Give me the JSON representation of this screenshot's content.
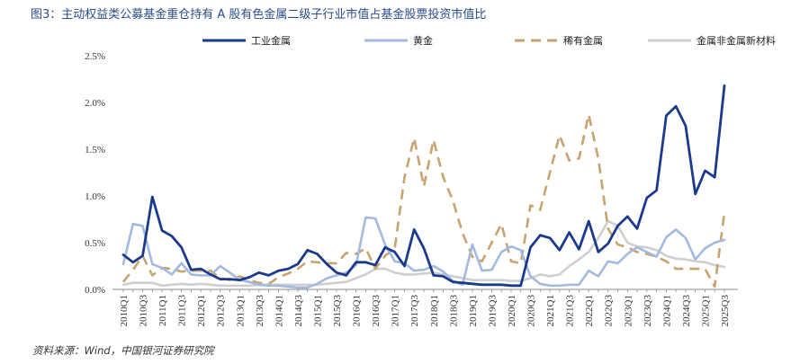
{
  "title": "图3：主动权益类公募基金重仓持有 A 股有色金属二级子行业市值占基金股票投资市值比",
  "source": "资料来源：Wind，中国银河证券研究院",
  "chart_data": {
    "type": "line",
    "title": "图3：主动权益类公募基金重仓持有 A 股有色金属二级子行业市值占基金股票投资市值比",
    "xlabel": "",
    "ylabel": "",
    "ylim": [
      0,
      2.5
    ],
    "yticks": [
      "0.0%",
      "0.5%",
      "1.0%",
      "1.5%",
      "2.0%",
      "2.5%"
    ],
    "grid": false,
    "legend_position": "top",
    "x": [
      "2010Q1",
      "2010Q2",
      "2010Q3",
      "2010Q4",
      "2011Q1",
      "2011Q2",
      "2011Q3",
      "2011Q4",
      "2012Q1",
      "2012Q2",
      "2012Q3",
      "2012Q4",
      "2013Q1",
      "2013Q2",
      "2013Q3",
      "2013Q4",
      "2014Q1",
      "2014Q2",
      "2014Q3",
      "2014Q4",
      "2015Q1",
      "2015Q2",
      "2015Q3",
      "2015Q4",
      "2016Q1",
      "2016Q2",
      "2016Q3",
      "2016Q4",
      "2017Q1",
      "2017Q2",
      "2017Q3",
      "2017Q4",
      "2018Q1",
      "2018Q2",
      "2018Q3",
      "2018Q4",
      "2019Q1",
      "2019Q2",
      "2019Q3",
      "2019Q4",
      "2020Q1",
      "2020Q2",
      "2020Q3",
      "2020Q4",
      "2021Q1",
      "2021Q2",
      "2021Q3",
      "2021Q4",
      "2022Q1",
      "2022Q2",
      "2022Q3",
      "2022Q4",
      "2023Q1",
      "2023Q2",
      "2023Q3",
      "2023Q4",
      "2024Q1",
      "2024Q2",
      "2024Q3",
      "2024Q4",
      "2025Q1",
      "2025Q2",
      "2025Q3"
    ],
    "xticks_shown": [
      "2010Q1",
      "2010Q3",
      "2011Q1",
      "2011Q3",
      "2012Q1",
      "2012Q3",
      "2013Q1",
      "2013Q3",
      "2014Q1",
      "2014Q3",
      "2015Q1",
      "2015Q3",
      "2016Q1",
      "2016Q3",
      "2017Q1",
      "2017Q3",
      "2018Q1",
      "2018Q3",
      "2019Q1",
      "2019Q3",
      "2020Q1",
      "2020Q3",
      "2021Q1",
      "2021Q3",
      "2022Q1",
      "2022Q3",
      "2023Q1",
      "2023Q3",
      "2024Q1",
      "2024Q3",
      "2025Q1",
      "2025Q3"
    ],
    "series": [
      {
        "name": "工业金属",
        "color": "#1b3a8c",
        "dash": "solid",
        "values": [
          0.37,
          0.29,
          0.36,
          0.99,
          0.63,
          0.57,
          0.45,
          0.21,
          0.22,
          0.16,
          0.11,
          0.11,
          0.1,
          0.13,
          0.18,
          0.15,
          0.2,
          0.22,
          0.27,
          0.42,
          0.38,
          0.27,
          0.18,
          0.15,
          0.29,
          0.29,
          0.26,
          0.45,
          0.4,
          0.25,
          0.64,
          0.44,
          0.15,
          0.14,
          0.08,
          0.07,
          0.06,
          0.05,
          0.05,
          0.05,
          0.04,
          0.04,
          0.45,
          0.58,
          0.55,
          0.42,
          0.61,
          0.43,
          0.73,
          0.4,
          0.49,
          0.68,
          0.78,
          0.65,
          0.98,
          1.06,
          1.86,
          1.96,
          1.75,
          1.02,
          1.27,
          1.2,
          2.18
        ]
      },
      {
        "name": "黄金",
        "color": "#a3b9df",
        "dash": "solid",
        "values": [
          0.27,
          0.7,
          0.68,
          0.27,
          0.23,
          0.16,
          0.28,
          0.16,
          0.15,
          0.15,
          0.25,
          0.18,
          0.1,
          0.08,
          0.05,
          0.04,
          0.04,
          0.03,
          0.02,
          0.02,
          0.06,
          0.12,
          0.15,
          0.18,
          0.26,
          0.77,
          0.76,
          0.48,
          0.3,
          0.28,
          0.2,
          0.21,
          0.25,
          0.19,
          0.09,
          0.05,
          0.48,
          0.2,
          0.21,
          0.4,
          0.46,
          0.42,
          0.14,
          0.06,
          0.04,
          0.04,
          0.05,
          0.05,
          0.2,
          0.14,
          0.3,
          0.28,
          0.38,
          0.45,
          0.4,
          0.35,
          0.56,
          0.64,
          0.55,
          0.32,
          0.44,
          0.5,
          0.53
        ]
      },
      {
        "name": "稀有金属",
        "color": "#c9a36f",
        "dash": "dashed",
        "values": [
          0.08,
          0.21,
          0.36,
          0.15,
          0.23,
          0.22,
          0.19,
          0.2,
          0.2,
          0.2,
          0.12,
          0.1,
          0.14,
          0.1,
          0.07,
          0.06,
          0.13,
          0.17,
          0.22,
          0.3,
          0.29,
          0.28,
          0.28,
          0.39,
          0.38,
          0.44,
          0.22,
          0.36,
          0.44,
          1.2,
          1.62,
          1.1,
          1.6,
          1.2,
          0.95,
          0.6,
          0.35,
          0.3,
          0.5,
          0.7,
          0.3,
          0.28,
          0.9,
          0.85,
          1.25,
          1.65,
          1.38,
          1.4,
          1.87,
          1.4,
          0.65,
          0.48,
          0.45,
          0.4,
          0.38,
          0.35,
          0.3,
          0.22,
          0.22,
          0.22,
          0.22,
          0.03,
          0.82
        ]
      },
      {
        "name": "金属非金属新材料",
        "color": "#cfcfcf",
        "dash": "solid",
        "values": [
          0.05,
          0.07,
          0.07,
          0.07,
          0.04,
          0.05,
          0.06,
          0.05,
          0.06,
          0.05,
          0.04,
          0.04,
          0.04,
          0.04,
          0.05,
          0.05,
          0.05,
          0.05,
          0.05,
          0.05,
          0.05,
          0.06,
          0.07,
          0.08,
          0.12,
          0.16,
          0.22,
          0.22,
          0.18,
          0.16,
          0.16,
          0.17,
          0.18,
          0.16,
          0.14,
          0.12,
          0.1,
          0.1,
          0.1,
          0.1,
          0.09,
          0.09,
          0.12,
          0.16,
          0.14,
          0.16,
          0.25,
          0.32,
          0.4,
          0.55,
          0.73,
          0.68,
          0.5,
          0.46,
          0.45,
          0.42,
          0.36,
          0.33,
          0.32,
          0.3,
          0.29,
          0.26,
          0.24
        ]
      }
    ]
  }
}
